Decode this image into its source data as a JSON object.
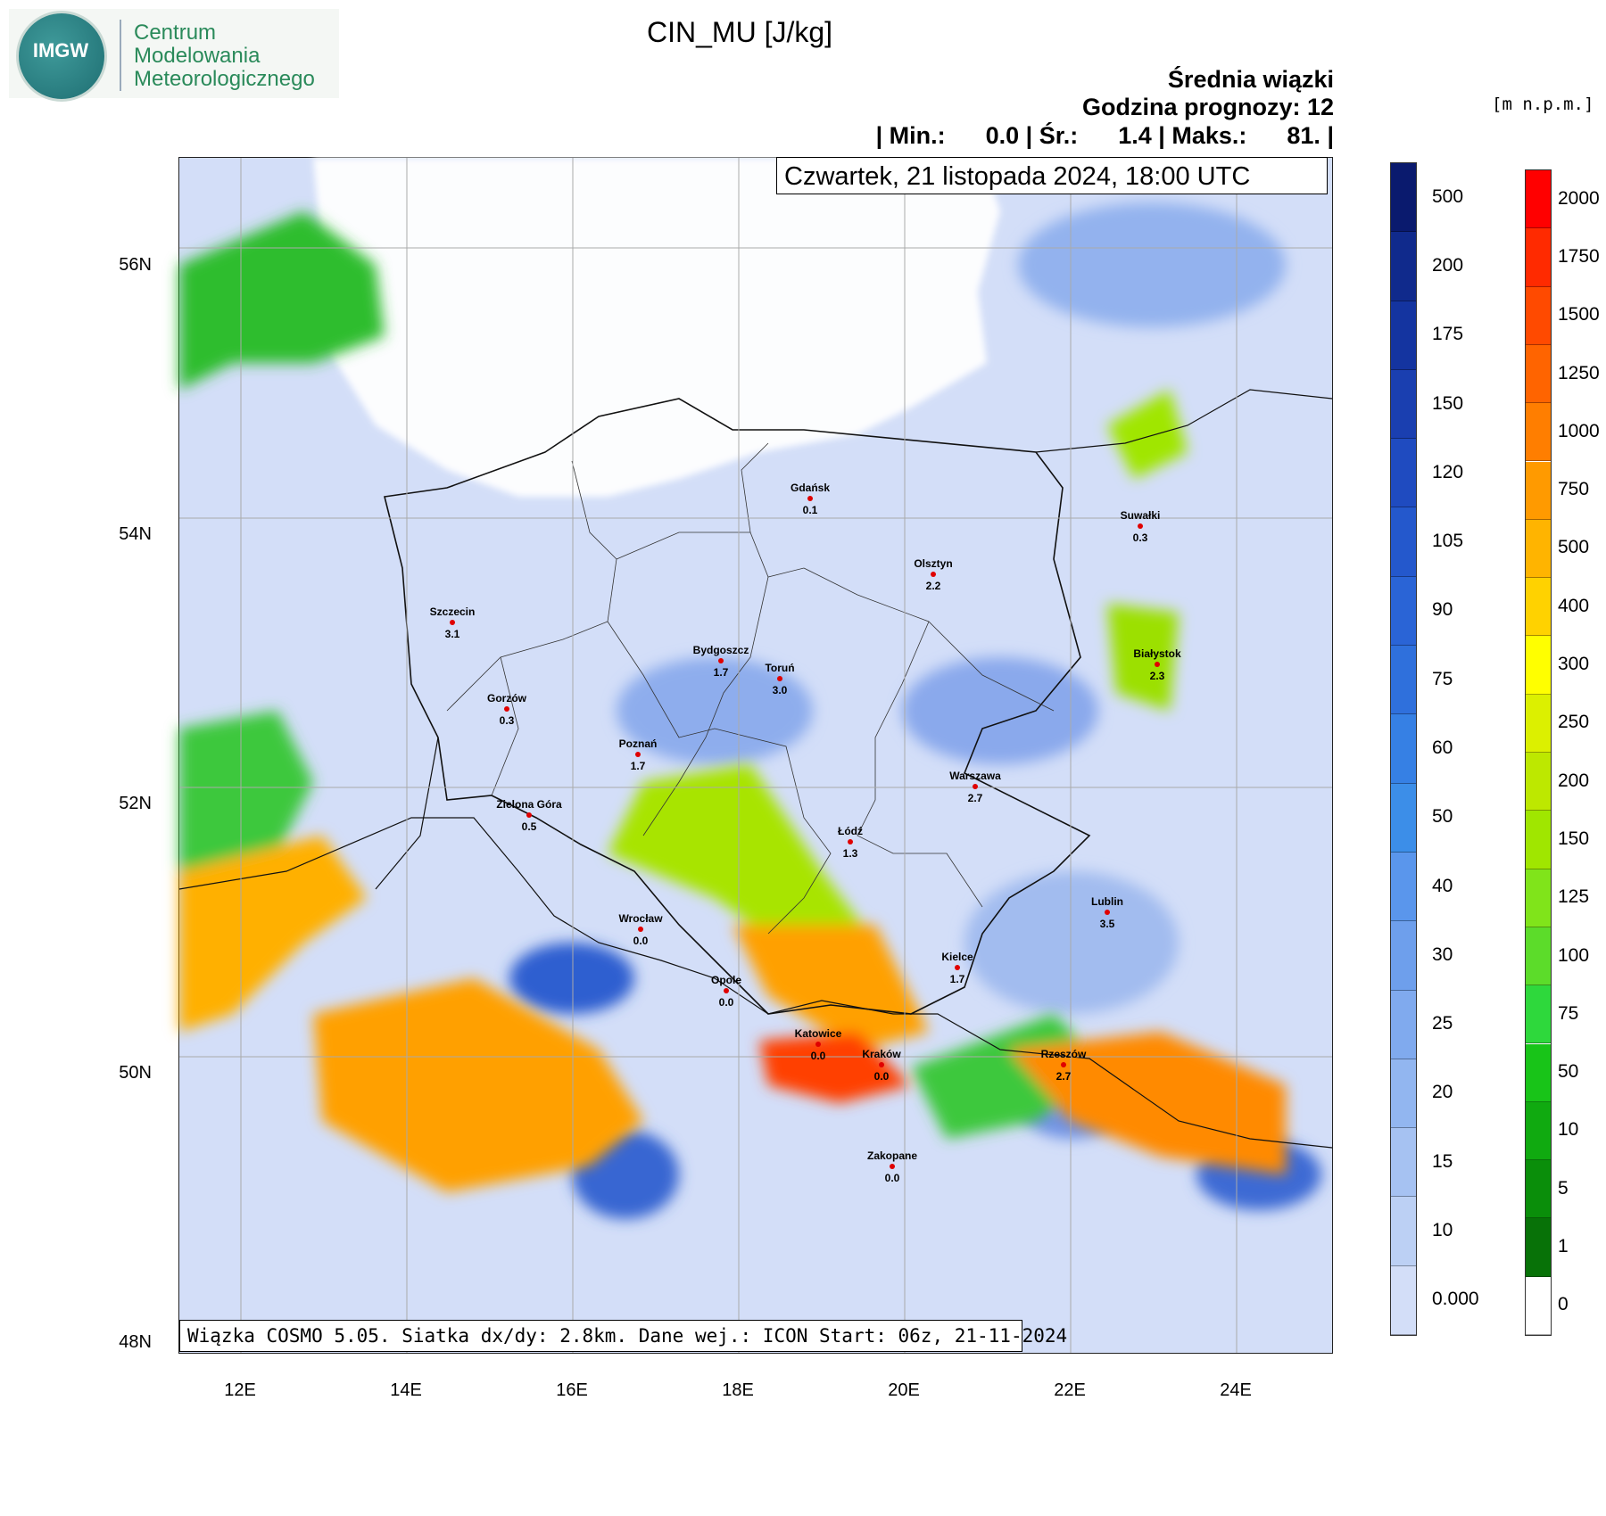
{
  "logo": {
    "emblem_text": "IMGW",
    "org_line1": "Centrum",
    "org_line2": "Modelowania",
    "org_line3": "Meteorologicznego"
  },
  "title": "CIN_MU [J/kg]",
  "header": {
    "line1": "Średnia wiązki",
    "line2": "Godzina prognozy: 12",
    "line3": "| Min.:      0.0 | Śr.:      1.4 | Maks.:      81. |"
  },
  "date_label": "Czwartek, 21 listopada 2024, 18:00 UTC",
  "footer": "Wiązka COSMO 5.05. Siatka dx/dy: 2.8km. Dane wej.: ICON Start: 06z, 21-11-2024",
  "terrain_unit": "[m n.p.m.]",
  "axes": {
    "lat_labels": [
      "56N",
      "54N",
      "52N",
      "50N",
      "48N"
    ],
    "lon_labels": [
      "12E",
      "14E",
      "16E",
      "18E",
      "20E",
      "22E",
      "24E"
    ]
  },
  "cin_colorbar": {
    "labels": [
      "500",
      "200",
      "175",
      "150",
      "120",
      "105",
      "90",
      "75",
      "60",
      "50",
      "40",
      "30",
      "25",
      "20",
      "15",
      "10",
      "0.000"
    ],
    "colors": [
      "#0a1a6e",
      "#102a8c",
      "#1434a0",
      "#1a3fb0",
      "#1f4bc0",
      "#2458cc",
      "#2a64d6",
      "#2f70dc",
      "#3680e4",
      "#3c8ee8",
      "#5a96ec",
      "#6e9fec",
      "#80aaee",
      "#92b6f0",
      "#a6c2f2",
      "#bcd0f4",
      "#d3def8"
    ]
  },
  "terrain_colorbar": {
    "labels": [
      "2000",
      "1750",
      "1500",
      "1250",
      "1000",
      "750",
      "500",
      "400",
      "300",
      "250",
      "200",
      "150",
      "125",
      "100",
      "75",
      "50",
      "10",
      "5",
      "1",
      "0"
    ],
    "colors": [
      "#ff0000",
      "#ff2a00",
      "#ff4a00",
      "#ff6400",
      "#ff7e00",
      "#ff9a00",
      "#ffb400",
      "#ffd200",
      "#ffff00",
      "#dcf000",
      "#bde800",
      "#a0e600",
      "#80e41a",
      "#5cdc2a",
      "#2ed83c",
      "#18c418",
      "#10aa10",
      "#0a8e0a",
      "#087208",
      "#ffffff"
    ]
  },
  "cities": [
    {
      "name": "Gdańsk",
      "value": "0.1"
    },
    {
      "name": "Suwałki",
      "value": "0.3"
    },
    {
      "name": "Olsztyn",
      "value": "2.2"
    },
    {
      "name": "Szczecin",
      "value": "3.1"
    },
    {
      "name": "Bydgoszcz",
      "value": "1.7"
    },
    {
      "name": "Toruń",
      "value": "3.0"
    },
    {
      "name": "Białystok",
      "value": "2.3"
    },
    {
      "name": "Gorzów",
      "value": "0.3"
    },
    {
      "name": "Poznań",
      "value": "1.7"
    },
    {
      "name": "Warszawa",
      "value": "2.7"
    },
    {
      "name": "Zielona Góra",
      "value": "0.5"
    },
    {
      "name": "Łódź",
      "value": "1.3"
    },
    {
      "name": "Lublin",
      "value": "3.5"
    },
    {
      "name": "Wrocław",
      "value": "0.0"
    },
    {
      "name": "Kielce",
      "value": "1.7"
    },
    {
      "name": "Opole",
      "value": "0.0"
    },
    {
      "name": "Katowice",
      "value": "0.0"
    },
    {
      "name": "Kraków",
      "value": "0.0"
    },
    {
      "name": "Rzeszów",
      "value": "2.7"
    },
    {
      "name": "Zakopane",
      "value": "0.0"
    }
  ]
}
